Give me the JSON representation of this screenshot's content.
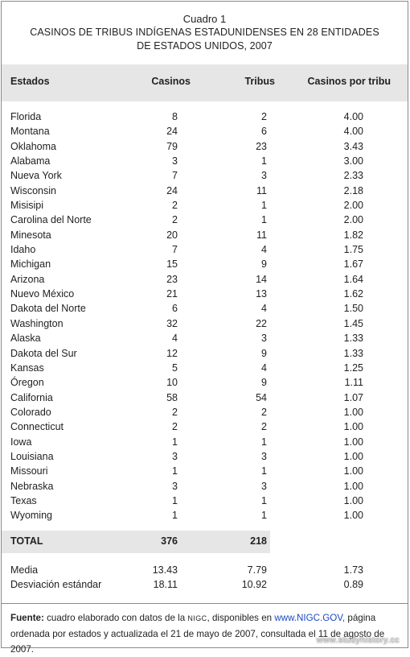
{
  "header": {
    "number": "Cuadro 1",
    "title_line1": "CASINOS DE TRIBUS INDÍGENAS ESTADUNIDENSES EN 28 ENTIDADES",
    "title_line2": "DE ESTADOS UNIDOS, 2007"
  },
  "columns": [
    "Estados",
    "Casinos",
    "Tribus",
    "Casinos por tribu"
  ],
  "rows": [
    [
      "Florida",
      "8",
      "2",
      "4.00"
    ],
    [
      "Montana",
      "24",
      "6",
      "4.00"
    ],
    [
      "Oklahoma",
      "79",
      "23",
      "3.43"
    ],
    [
      "Alabama",
      "3",
      "1",
      "3.00"
    ],
    [
      "Nueva York",
      "7",
      "3",
      "2.33"
    ],
    [
      "Wisconsin",
      "24",
      "11",
      "2.18"
    ],
    [
      "Misisipi",
      "2",
      "1",
      "2.00"
    ],
    [
      "Carolina del Norte",
      "2",
      "1",
      "2.00"
    ],
    [
      "Minesota",
      "20",
      "11",
      "1.82"
    ],
    [
      "Idaho",
      "7",
      "4",
      "1.75"
    ],
    [
      "Michigan",
      "15",
      "9",
      "1.67"
    ],
    [
      "Arizona",
      "23",
      "14",
      "1.64"
    ],
    [
      "Nuevo México",
      "21",
      "13",
      "1.62"
    ],
    [
      "Dakota del Norte",
      "6",
      "4",
      "1.50"
    ],
    [
      "Washington",
      "32",
      "22",
      "1.45"
    ],
    [
      "Alaska",
      "4",
      "3",
      "1.33"
    ],
    [
      "Dakota del Sur",
      "12",
      "9",
      "1.33"
    ],
    [
      "Kansas",
      "5",
      "4",
      "1.25"
    ],
    [
      "Óregon",
      "10",
      "9",
      "1.11"
    ],
    [
      "California",
      "58",
      "54",
      "1.07"
    ],
    [
      "Colorado",
      "2",
      "2",
      "1.00"
    ],
    [
      "Connecticut",
      "2",
      "2",
      "1.00"
    ],
    [
      "Iowa",
      "1",
      "1",
      "1.00"
    ],
    [
      "Louisiana",
      "3",
      "3",
      "1.00"
    ],
    [
      "Missouri",
      "1",
      "1",
      "1.00"
    ],
    [
      "Nebraska",
      "3",
      "3",
      "1.00"
    ],
    [
      "Texas",
      "1",
      "1",
      "1.00"
    ],
    [
      "Wyoming",
      "1",
      "1",
      "1.00"
    ]
  ],
  "total": {
    "label": "TOTAL",
    "casinos": "376",
    "tribus": "218"
  },
  "stats": [
    [
      "Media",
      "13.43",
      "7.79",
      "1.73"
    ],
    [
      "Desviación estándar",
      "18.11",
      "10.92",
      "0.89"
    ]
  ],
  "footer": {
    "label": "Fuente:",
    "text_a": " cuadro elaborado con datos de la ",
    "org": "NIGC",
    "text_b": ", disponibles en ",
    "link": "www.NIGC.GOV,",
    "text_c": " página ordenada por estados y actualizada el 21 de mayo de 2007, consultada el 11 de agosto de 2007."
  },
  "watermark": "www.studyhistory.cc",
  "colors": {
    "header_band": "#e6e6e6",
    "link": "#1a49c4",
    "border": "#8a8a8a"
  }
}
